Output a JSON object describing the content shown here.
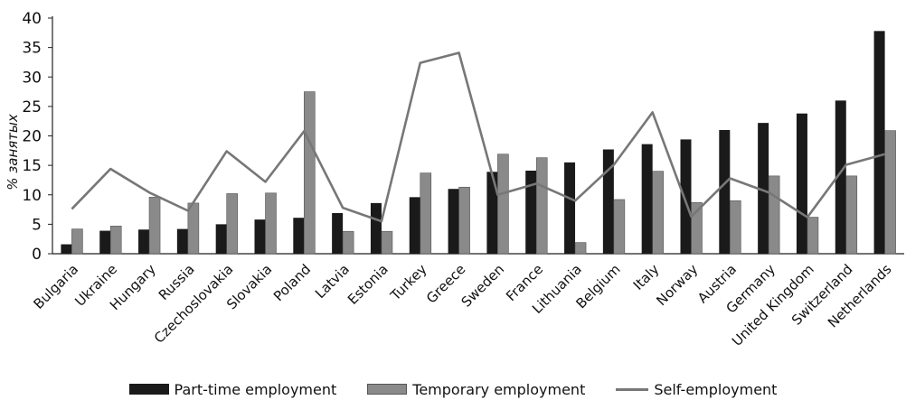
{
  "chart_data": {
    "type": "bar",
    "ylabel": "% занятых",
    "ylim": [
      0,
      40
    ],
    "yticks": [
      0,
      5,
      10,
      15,
      20,
      25,
      30,
      35,
      40
    ],
    "grid": false,
    "legend_position": "bottom",
    "categories": [
      "Bulgaria",
      "Ukraine",
      "Hungary",
      "Russia",
      "Czechoslovakia",
      "Slovakia",
      "Poland",
      "Latvia",
      "Estonia",
      "Turkey",
      "Greece",
      "Sweden",
      "France",
      "Lithuania",
      "Belgium",
      "Italy",
      "Norway",
      "Austria",
      "Germany",
      "United Kingdom",
      "Switzerland",
      "Netherlands"
    ],
    "series": [
      {
        "name": "Part-time employment",
        "kind": "bar",
        "color": "#1a1a1a",
        "values": [
          1.6,
          3.9,
          4.1,
          4.2,
          5.0,
          5.8,
          6.1,
          6.9,
          8.6,
          9.6,
          11.0,
          13.9,
          14.1,
          15.5,
          17.7,
          18.6,
          19.4,
          21.0,
          22.2,
          23.8,
          26.0,
          37.8
        ]
      },
      {
        "name": "Temporary employment",
        "kind": "bar",
        "color": "#8a8a8a",
        "values": [
          4.2,
          4.7,
          9.6,
          8.6,
          10.2,
          10.3,
          27.5,
          3.8,
          3.8,
          13.7,
          11.3,
          16.9,
          16.3,
          1.9,
          9.2,
          14.0,
          8.7,
          9.0,
          13.2,
          6.2,
          13.2,
          20.9
        ]
      },
      {
        "name": "Self-employment",
        "kind": "line",
        "color": "#777777",
        "values": [
          7.6,
          14.4,
          10.4,
          7.3,
          17.4,
          12.2,
          20.8,
          7.8,
          5.5,
          32.4,
          34.1,
          10.0,
          11.9,
          9.0,
          15.1,
          24.0,
          6.3,
          12.8,
          10.4,
          6.2,
          15.1,
          16.9
        ]
      }
    ]
  }
}
